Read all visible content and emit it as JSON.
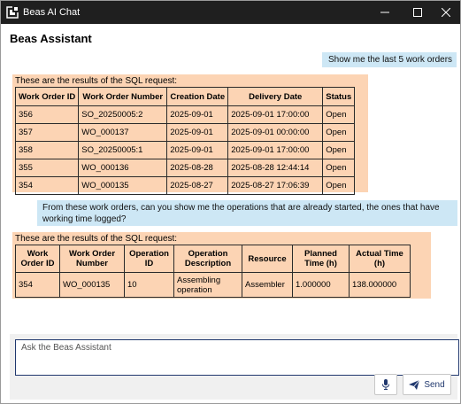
{
  "window": {
    "title": "Beas AI Chat"
  },
  "header": {
    "title": "Beas Assistant"
  },
  "messages": {
    "user_1": "Show me the last 5 work orders",
    "bot_1": {
      "intro": "These are the results of the SQL request:",
      "columns": [
        "Work Order ID",
        "Work Order Number",
        "Creation Date",
        "Delivery Date",
        "Status"
      ],
      "rows": [
        [
          "356",
          "SO_20250005:2",
          "2025-09-01",
          "2025-09-01 17:00:00",
          "Open"
        ],
        [
          "357",
          "WO_000137",
          "2025-09-01",
          "2025-09-01 00:00:00",
          "Open"
        ],
        [
          "358",
          "SO_20250005:1",
          "2025-09-01",
          "2025-09-01 17:00:00",
          "Open"
        ],
        [
          "355",
          "WO_000136",
          "2025-08-28",
          "2025-08-28 12:44:14",
          "Open"
        ],
        [
          "354",
          "WO_000135",
          "2025-08-27",
          "2025-08-27 17:06:39",
          "Open"
        ]
      ]
    },
    "user_2": "From these work orders, can you show me the operations that are already started, the ones that have working time logged?",
    "bot_2": {
      "intro": "These are the results of the SQL request:",
      "columns": [
        "Work Order ID",
        "Work Order Number",
        "Operation ID",
        "Operation Description",
        "Resource",
        "Planned Time (h)",
        "Actual Time (h)"
      ],
      "rows": [
        [
          "354",
          "WO_000135",
          "10",
          "Assembling operation",
          "Assembler",
          "1.000000",
          "138.000000"
        ]
      ]
    }
  },
  "composer": {
    "placeholder": "Ask the Beas Assistant",
    "send_label": "Send"
  },
  "icons": {
    "app": "app-logo-icon",
    "mic": "microphone-icon",
    "send": "paper-plane-icon"
  },
  "colors": {
    "user_bubble": "#cde7f5",
    "bot_bubble": "#fcd4b4",
    "accent": "#20386e",
    "titlebar": "#1f1f1f"
  }
}
